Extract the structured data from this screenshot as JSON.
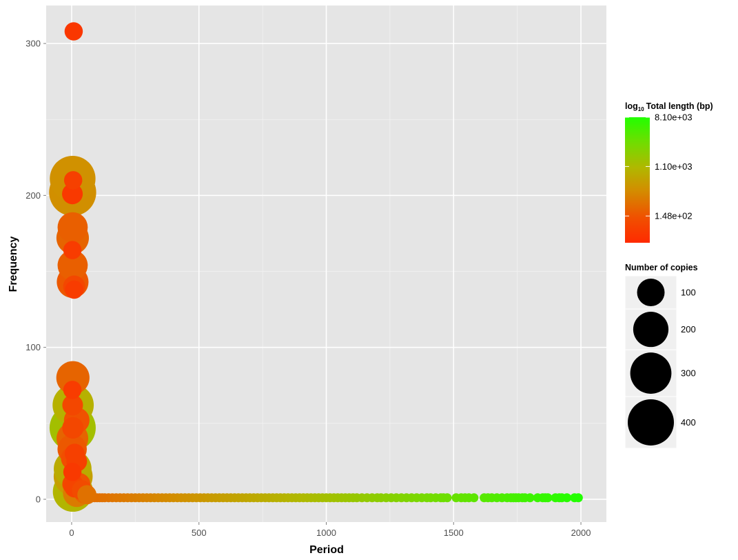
{
  "chart_data": {
    "type": "scatter",
    "title": "",
    "xlabel": "Period",
    "ylabel": "Frequency",
    "xlim": [
      -100,
      2100
    ],
    "ylim": [
      -15,
      325
    ],
    "x_ticks": [
      0,
      500,
      1000,
      1500,
      2000
    ],
    "y_ticks": [
      0,
      100,
      200,
      300
    ],
    "grid": true,
    "legend_position": "right",
    "color_legend": {
      "title_prefix": "log",
      "title_subscript": "10",
      "title_main": "Total length (bp)",
      "scale": "log10",
      "low_color": "#ff2a00",
      "mid_color": "#c8a800",
      "high_color": "#22ff00",
      "range": [
        50,
        8100
      ],
      "breaks": [
        {
          "value": 8100,
          "label": "8.10e+03"
        },
        {
          "value": 1100,
          "label": "1.10e+03"
        },
        {
          "value": 148,
          "label": "1.48e+02"
        }
      ]
    },
    "size_legend": {
      "title": "Number of copies",
      "breaks": [
        {
          "value": 100,
          "label": "100"
        },
        {
          "value": 200,
          "label": "200"
        },
        {
          "value": 300,
          "label": "300"
        },
        {
          "value": 400,
          "label": "400"
        }
      ]
    },
    "clusters": [
      {
        "x": 8,
        "y": 308,
        "length": 70,
        "copies": 25
      },
      {
        "x": 4,
        "y": 211,
        "length": 450,
        "copies": 390
      },
      {
        "x": 4,
        "y": 202,
        "length": 430,
        "copies": 420
      },
      {
        "x": 6,
        "y": 210,
        "length": 90,
        "copies": 25
      },
      {
        "x": 3,
        "y": 201,
        "length": 75,
        "copies": 40
      },
      {
        "x": 4,
        "y": 179,
        "length": 180,
        "copies": 130
      },
      {
        "x": 4,
        "y": 172,
        "length": 200,
        "copies": 160
      },
      {
        "x": 3,
        "y": 164,
        "length": 80,
        "copies": 25
      },
      {
        "x": 4,
        "y": 154,
        "length": 180,
        "copies": 130
      },
      {
        "x": 4,
        "y": 143,
        "length": 160,
        "copies": 150
      },
      {
        "x": 10,
        "y": 140,
        "length": 110,
        "copies": 50
      },
      {
        "x": 10,
        "y": 138,
        "length": 80,
        "copies": 25
      },
      {
        "x": 5,
        "y": 80,
        "length": 200,
        "copies": 170
      },
      {
        "x": 3,
        "y": 72,
        "length": 80,
        "copies": 25
      },
      {
        "x": 6,
        "y": 62,
        "length": 900,
        "copies": 300
      },
      {
        "x": 4,
        "y": 62,
        "length": 110,
        "copies": 40
      },
      {
        "x": 20,
        "y": 52,
        "length": 140,
        "copies": 80
      },
      {
        "x": 4,
        "y": 47,
        "length": 1300,
        "copies": 400
      },
      {
        "x": 5,
        "y": 47,
        "length": 110,
        "copies": 45
      },
      {
        "x": 3,
        "y": 40,
        "length": 200,
        "copies": 150
      },
      {
        "x": 2,
        "y": 33,
        "length": 160,
        "copies": 120
      },
      {
        "x": 12,
        "y": 30,
        "length": 90,
        "copies": 35
      },
      {
        "x": 4,
        "y": 27,
        "length": 130,
        "copies": 60
      },
      {
        "x": 20,
        "y": 25,
        "length": 90,
        "copies": 40
      },
      {
        "x": 4,
        "y": 20,
        "length": 800,
        "copies": 240
      },
      {
        "x": 3,
        "y": 18,
        "length": 75,
        "copies": 25
      },
      {
        "x": 6,
        "y": 15,
        "length": 600,
        "copies": 260
      },
      {
        "x": 4,
        "y": 10,
        "length": 110,
        "copies": 40
      },
      {
        "x": 5,
        "y": 5,
        "length": 1000,
        "copies": 280
      },
      {
        "x": 30,
        "y": 10,
        "length": 150,
        "copies": 50
      },
      {
        "x": 40,
        "y": 6,
        "length": 120,
        "copies": 35
      },
      {
        "x": 20,
        "y": 4,
        "length": 300,
        "copies": 100
      },
      {
        "x": 50,
        "y": 4,
        "length": 200,
        "copies": 40
      },
      {
        "x": 12,
        "y": 8,
        "length": 100,
        "copies": 40
      },
      {
        "x": 60,
        "y": 3,
        "length": 250,
        "copies": 30
      }
    ],
    "baseline": {
      "y": 1,
      "length_min": 200,
      "length_max": 8100,
      "x": [
        10,
        20,
        30,
        40,
        50,
        60,
        70,
        80,
        90,
        100,
        110,
        120,
        130,
        145,
        160,
        175,
        190,
        205,
        220,
        235,
        250,
        265,
        280,
        295,
        310,
        325,
        340,
        355,
        370,
        385,
        400,
        415,
        430,
        445,
        460,
        475,
        490,
        505,
        520,
        535,
        550,
        565,
        580,
        595,
        610,
        625,
        640,
        655,
        670,
        685,
        700,
        715,
        730,
        745,
        760,
        775,
        790,
        805,
        820,
        835,
        850,
        865,
        880,
        895,
        910,
        925,
        940,
        955,
        970,
        985,
        1000,
        1015,
        1030,
        1045,
        1060,
        1075,
        1090,
        1105,
        1120,
        1140,
        1160,
        1180,
        1200,
        1215,
        1235,
        1255,
        1275,
        1295,
        1315,
        1335,
        1355,
        1375,
        1395,
        1410,
        1430,
        1450,
        1460,
        1475,
        1510,
        1530,
        1545,
        1560,
        1580,
        1620,
        1635,
        1650,
        1670,
        1690,
        1710,
        1725,
        1735,
        1745,
        1755,
        1770,
        1780,
        1800,
        1830,
        1850,
        1860,
        1870,
        1900,
        1915,
        1925,
        1945,
        1975,
        1990
      ]
    }
  }
}
